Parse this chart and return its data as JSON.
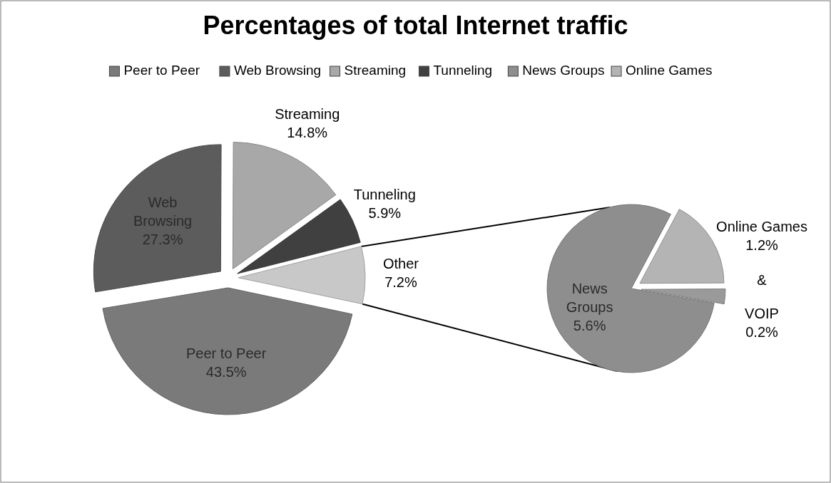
{
  "chart_data": [
    {
      "type": "pie",
      "title": "Percentages of total Internet traffic",
      "legend": "top",
      "categories": [
        "Peer to Peer",
        "Web Browsing",
        "Streaming",
        "Tunneling",
        "Other"
      ],
      "values": [
        43.5,
        27.3,
        14.8,
        5.9,
        7.2
      ],
      "value_labels": [
        "43.5%",
        "27.3%",
        "14.8%",
        "5.9%",
        "7.2%"
      ],
      "colors": [
        "#7a7a7a",
        "#5c5c5c",
        "#a8a8a8",
        "#404040",
        "#c8c8c8"
      ]
    },
    {
      "type": "pie",
      "categories": [
        "News Groups",
        "Online Games",
        "VOIP"
      ],
      "values": [
        5.6,
        1.2,
        0.2
      ],
      "value_labels": [
        "5.6%",
        "1.2%",
        "0.2%"
      ],
      "colors": [
        "#8e8e8e",
        "#b4b4b4",
        "#9a9a9a"
      ],
      "legend": "top",
      "annotations": [
        "&"
      ]
    }
  ]
}
